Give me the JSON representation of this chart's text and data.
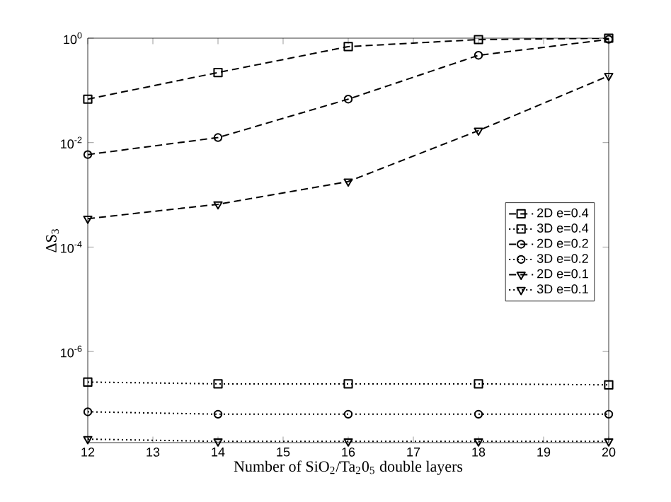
{
  "chart_data": {
    "type": "line",
    "xlabel": "Number of SiO$_{2}$/Ta$_{2}$0$_{5}$ double layers",
    "ylabel": "ΔS$_{3}$",
    "x": [
      12,
      14,
      16,
      18,
      20
    ],
    "xlim": [
      12,
      20
    ],
    "xticks": [
      12,
      13,
      14,
      15,
      16,
      17,
      18,
      19,
      20
    ],
    "ylim": [
      1.8e-08,
      1
    ],
    "yticks": [
      {
        "value": 1,
        "label": "10$^{0}$"
      },
      {
        "value": 0.01,
        "label": "10$^{-2}$"
      },
      {
        "value": 0.0001,
        "label": "10$^{-4}$"
      },
      {
        "value": 1e-06,
        "label": "10$^{-6}$"
      }
    ],
    "log": "y",
    "grid": false,
    "legend": "right",
    "series": [
      {
        "name": "2D e=0.4",
        "color": "#000000",
        "marker": "square",
        "line_style": "dashed",
        "values": [
          0.068,
          0.22,
          0.69,
          0.94,
          1.0
        ]
      },
      {
        "name": "3D e=0.4",
        "color": "#000000",
        "marker": "square",
        "line_style": "dotted",
        "values": [
          2.6e-07,
          2.4e-07,
          2.4e-07,
          2.4e-07,
          2.3e-07
        ]
      },
      {
        "name": "2D e=0.2",
        "color": "#000000",
        "marker": "circle",
        "line_style": "dashed",
        "values": [
          0.0059,
          0.0125,
          0.068,
          0.47,
          0.95
        ]
      },
      {
        "name": "3D e=0.2",
        "color": "#000000",
        "marker": "circle",
        "line_style": "dotted",
        "values": [
          7e-08,
          6.3e-08,
          6.3e-08,
          6.3e-08,
          6.3e-08
        ]
      },
      {
        "name": "2D e=0.1",
        "color": "#000000",
        "marker": "triangle",
        "line_style": "dashed",
        "values": [
          0.00035,
          0.00066,
          0.0018,
          0.017,
          0.19
        ]
      },
      {
        "name": "3D e=0.1",
        "color": "#000000",
        "marker": "triangle",
        "line_style": "dotted",
        "values": [
          2.1e-08,
          1.9e-08,
          1.9e-08,
          1.9e-08,
          1.9e-08
        ]
      }
    ]
  }
}
